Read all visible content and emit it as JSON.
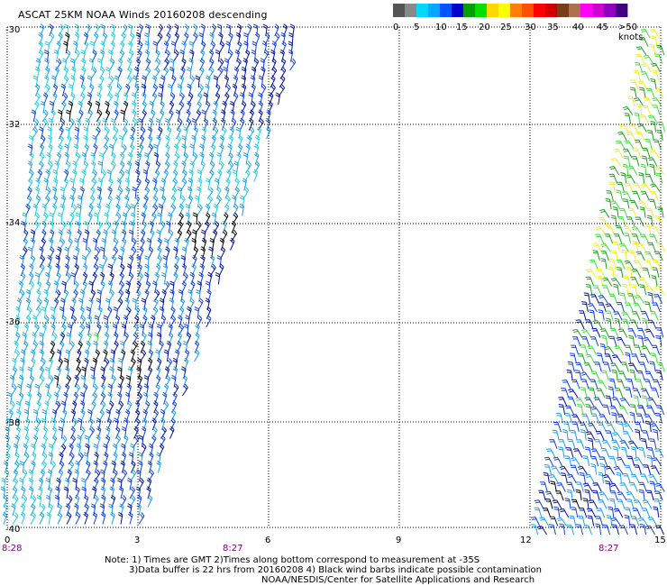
{
  "title": "ASCAT 25KM NOAA Winds 20160208 descending",
  "colorbar": {
    "segments": [
      "#555555",
      "#888888",
      "#00d8ff",
      "#00a8ff",
      "#0055ff",
      "#0000cc",
      "#00a000",
      "#00e000",
      "#ffd800",
      "#ffff00",
      "#ff8000",
      "#ff5000",
      "#ff0000",
      "#d00000",
      "#7a3d1a",
      "#b07050",
      "#ff00ff",
      "#d000d0",
      "#9000c0",
      "#400080"
    ],
    "labels": [
      "0",
      "5",
      "10",
      "15",
      "20",
      "25",
      "30",
      "35",
      "40",
      "45",
      ">50 knots"
    ]
  },
  "axes": {
    "lat_labels": [
      "-30",
      "-32",
      "-34",
      "-36",
      "-38",
      "-40"
    ],
    "lon_labels": [
      "0",
      "3",
      "6",
      "9",
      "12",
      "15"
    ]
  },
  "time_labels": [
    "8:28",
    "8:27",
    "8:27"
  ],
  "notes": {
    "line1": "Note: 1) Times are GMT 2)Times along bottom correspond to measurement at -35S",
    "line2": "3)Data buffer is 22 hrs from 20160208 4) Black wind barbs indicate possible contamination",
    "line3": "NOAA/NESDIS/Center for Satellite Applications and Research"
  },
  "barb_colors": {
    "cyan": "#22d0e0",
    "light_blue": "#1aa0f0",
    "blue": "#1040e0",
    "dark_blue": "#0010a0",
    "black": "#000000",
    "green": "#20a020",
    "light_green": "#40e040",
    "yellow": "#f0f020"
  }
}
